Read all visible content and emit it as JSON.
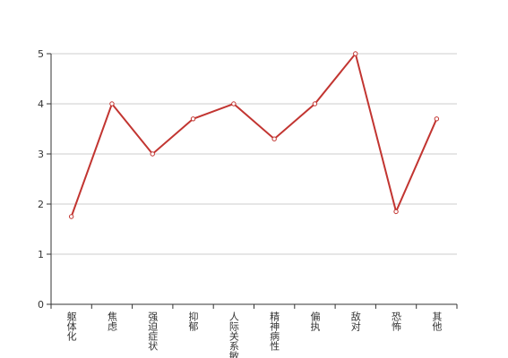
{
  "chart_data": {
    "type": "line",
    "categories": [
      "躯体化",
      "焦虑",
      "强迫症状",
      "抑郁",
      "人际关系敏感",
      "精神病性",
      "偏执",
      "敌对",
      "恐怖",
      "其他"
    ],
    "series": [
      {
        "color": "#c23531",
        "values": [
          1.75,
          4,
          3,
          3.7,
          4,
          3.3,
          4,
          5,
          1.85,
          3.7
        ]
      }
    ],
    "ylim": [
      0,
      5
    ],
    "yticks": [
      0,
      1,
      2,
      3,
      4,
      5
    ],
    "grid": true
  }
}
